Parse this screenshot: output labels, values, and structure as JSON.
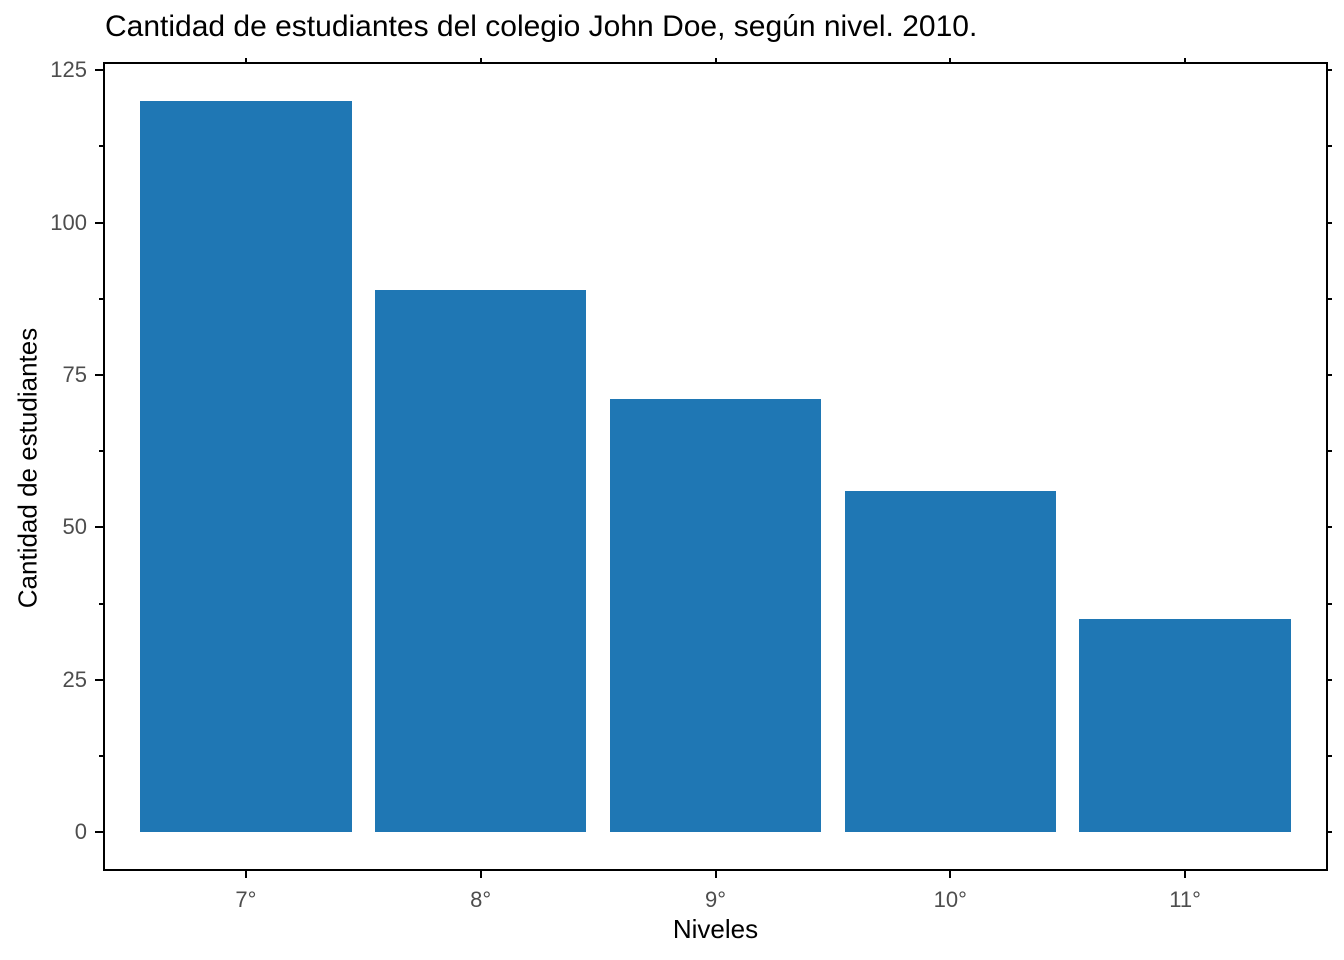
{
  "chart_data": {
    "type": "bar",
    "title": "Cantidad de estudiantes del colegio John Doe, según nivel. 2010.",
    "xlabel": "Niveles",
    "ylabel": "Cantidad de estudiantes",
    "categories": [
      "7°",
      "8°",
      "9°",
      "10°",
      "11°"
    ],
    "values": [
      120,
      89,
      71,
      56,
      35
    ],
    "ylim": [
      -6,
      126
    ],
    "xlim_units": [
      0.4,
      5.6
    ],
    "y_major_ticks": [
      0,
      25,
      50,
      75,
      100,
      125
    ],
    "y_minor_ticks": [
      12.5,
      37.5,
      62.5,
      87.5,
      112.5
    ],
    "bar_width_fraction": 0.9,
    "grid": false,
    "legend": false,
    "colors": {
      "bar": "#1f77b4",
      "axis": "#000000",
      "tick_label": "#4d4d4d",
      "title": "#000000"
    }
  }
}
